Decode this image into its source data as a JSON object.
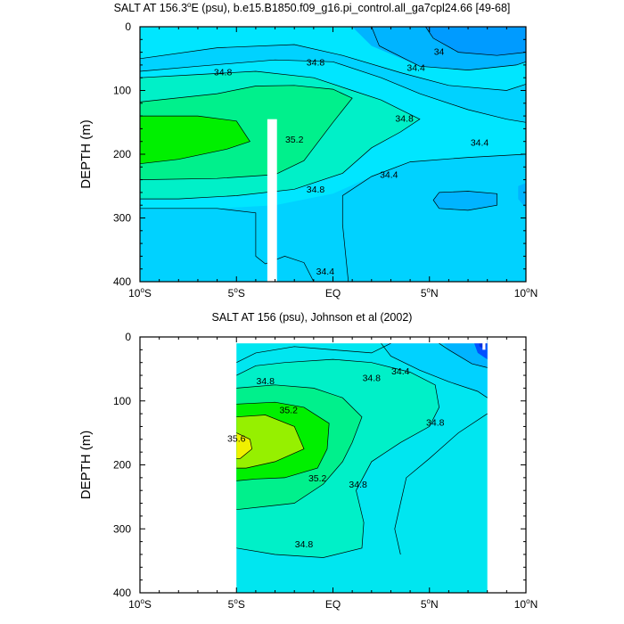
{
  "chart_data": [
    {
      "type": "contour",
      "title": "SALT AT 156.3°E (psu), b.e15.B1850.f09_g16.pi_control.all_ga7cpl24.66 [49-68]",
      "title_parts": [
        "SALT AT 156.3",
        "o",
        "E (psu), b.e15.B1850.f09_g16.pi_control.all_ga7cpl24.66 [49-68]"
      ],
      "xlabel": "",
      "ylabel": "DEPTH (m)",
      "xlim": [
        -10,
        10
      ],
      "ylim": [
        400,
        0
      ],
      "y_reversed": true,
      "x_ticks": [
        {
          "value": -10,
          "parts": [
            "10",
            "o",
            "S"
          ]
        },
        {
          "value": -5,
          "parts": [
            "5",
            "o",
            "S"
          ]
        },
        {
          "value": 0,
          "parts": [
            "EQ",
            "",
            ""
          ]
        },
        {
          "value": 5,
          "parts": [
            "5",
            "o",
            "N"
          ]
        },
        {
          "value": 10,
          "parts": [
            "10",
            "o",
            "N"
          ]
        }
      ],
      "y_ticks": [
        0,
        100,
        200,
        300,
        400
      ],
      "data_extent_lat": [
        -10,
        10
      ],
      "missing_column_lat": [
        -3.4,
        -2.9
      ],
      "missing_column_depth_from": 145,
      "contour_interval": 0.2,
      "contour_levels_labeled": [
        {
          "text": "34",
          "lat": 5.5,
          "depth": 40
        },
        {
          "text": "34.4",
          "lat": 4.3,
          "depth": 65
        },
        {
          "text": "34.8",
          "lat": -5.7,
          "depth": 72
        },
        {
          "text": "34.8",
          "lat": -0.9,
          "depth": 57
        },
        {
          "text": "34.8",
          "lat": 3.7,
          "depth": 145
        },
        {
          "text": "35.2",
          "lat": -2.0,
          "depth": 178
        },
        {
          "text": "34.8",
          "lat": -0.9,
          "depth": 256
        },
        {
          "text": "34.4",
          "lat": 2.9,
          "depth": 233
        },
        {
          "text": "34.4",
          "lat": 7.6,
          "depth": 183
        },
        {
          "text": "34.4",
          "lat": -0.4,
          "depth": 385
        }
      ],
      "salinity_regions": [
        {
          "level": 34.0,
          "color": "#009bff"
        },
        {
          "level": 34.2,
          "color": "#00b4ff"
        },
        {
          "level": 34.4,
          "color": "#00d2ff"
        },
        {
          "level": 34.6,
          "color": "#00e6ff"
        },
        {
          "level": 34.8,
          "color": "#00f0c8"
        },
        {
          "level": 35.0,
          "color": "#00f08c"
        },
        {
          "level": 35.2,
          "color": "#00f000"
        }
      ]
    },
    {
      "type": "contour",
      "title": "SALT AT 156 (psu), Johnson et al (2002)",
      "title_parts": [
        "SALT AT 156 (psu), Johnson et al (2002)",
        "",
        ""
      ],
      "xlabel": "",
      "ylabel": "DEPTH (m)",
      "xlim": [
        -10,
        10
      ],
      "ylim": [
        400,
        0
      ],
      "y_reversed": true,
      "x_ticks": [
        {
          "value": -10,
          "parts": [
            "10",
            "o",
            "S"
          ]
        },
        {
          "value": -5,
          "parts": [
            "5",
            "o",
            "S"
          ]
        },
        {
          "value": 0,
          "parts": [
            "EQ",
            "",
            ""
          ]
        },
        {
          "value": 5,
          "parts": [
            "5",
            "o",
            "N"
          ]
        },
        {
          "value": 10,
          "parts": [
            "10",
            "o",
            "N"
          ]
        }
      ],
      "y_ticks": [
        0,
        100,
        200,
        300,
        400
      ],
      "data_extent_lat": [
        -5,
        8
      ],
      "data_extent_depth": [
        10,
        400
      ],
      "contour_interval": 0.2,
      "contour_levels_labeled": [
        {
          "text": "34.4",
          "lat": 3.5,
          "depth": 55
        },
        {
          "text": "34.8",
          "lat": -3.5,
          "depth": 70
        },
        {
          "text": "34.8",
          "lat": 2.0,
          "depth": 65
        },
        {
          "text": "35.2",
          "lat": -2.3,
          "depth": 115
        },
        {
          "text": "34.8",
          "lat": 5.3,
          "depth": 135
        },
        {
          "text": "35.6",
          "lat": -5.0,
          "depth": 160
        },
        {
          "text": "35.2",
          "lat": -0.8,
          "depth": 222
        },
        {
          "text": "34.8",
          "lat": 1.3,
          "depth": 232
        },
        {
          "text": "34.8",
          "lat": -1.5,
          "depth": 325
        }
      ],
      "salinity_regions": [
        {
          "level": 34.0,
          "color": "#0050ff"
        },
        {
          "level": 34.2,
          "color": "#00b4ff"
        },
        {
          "level": 34.4,
          "color": "#00d2ff"
        },
        {
          "level": 34.6,
          "color": "#00e6f0"
        },
        {
          "level": 34.8,
          "color": "#00f0c8"
        },
        {
          "level": 35.0,
          "color": "#00f08c"
        },
        {
          "level": 35.2,
          "color": "#00f000"
        },
        {
          "level": 35.4,
          "color": "#96f000"
        },
        {
          "level": 35.6,
          "color": "#f0f000"
        }
      ]
    }
  ]
}
